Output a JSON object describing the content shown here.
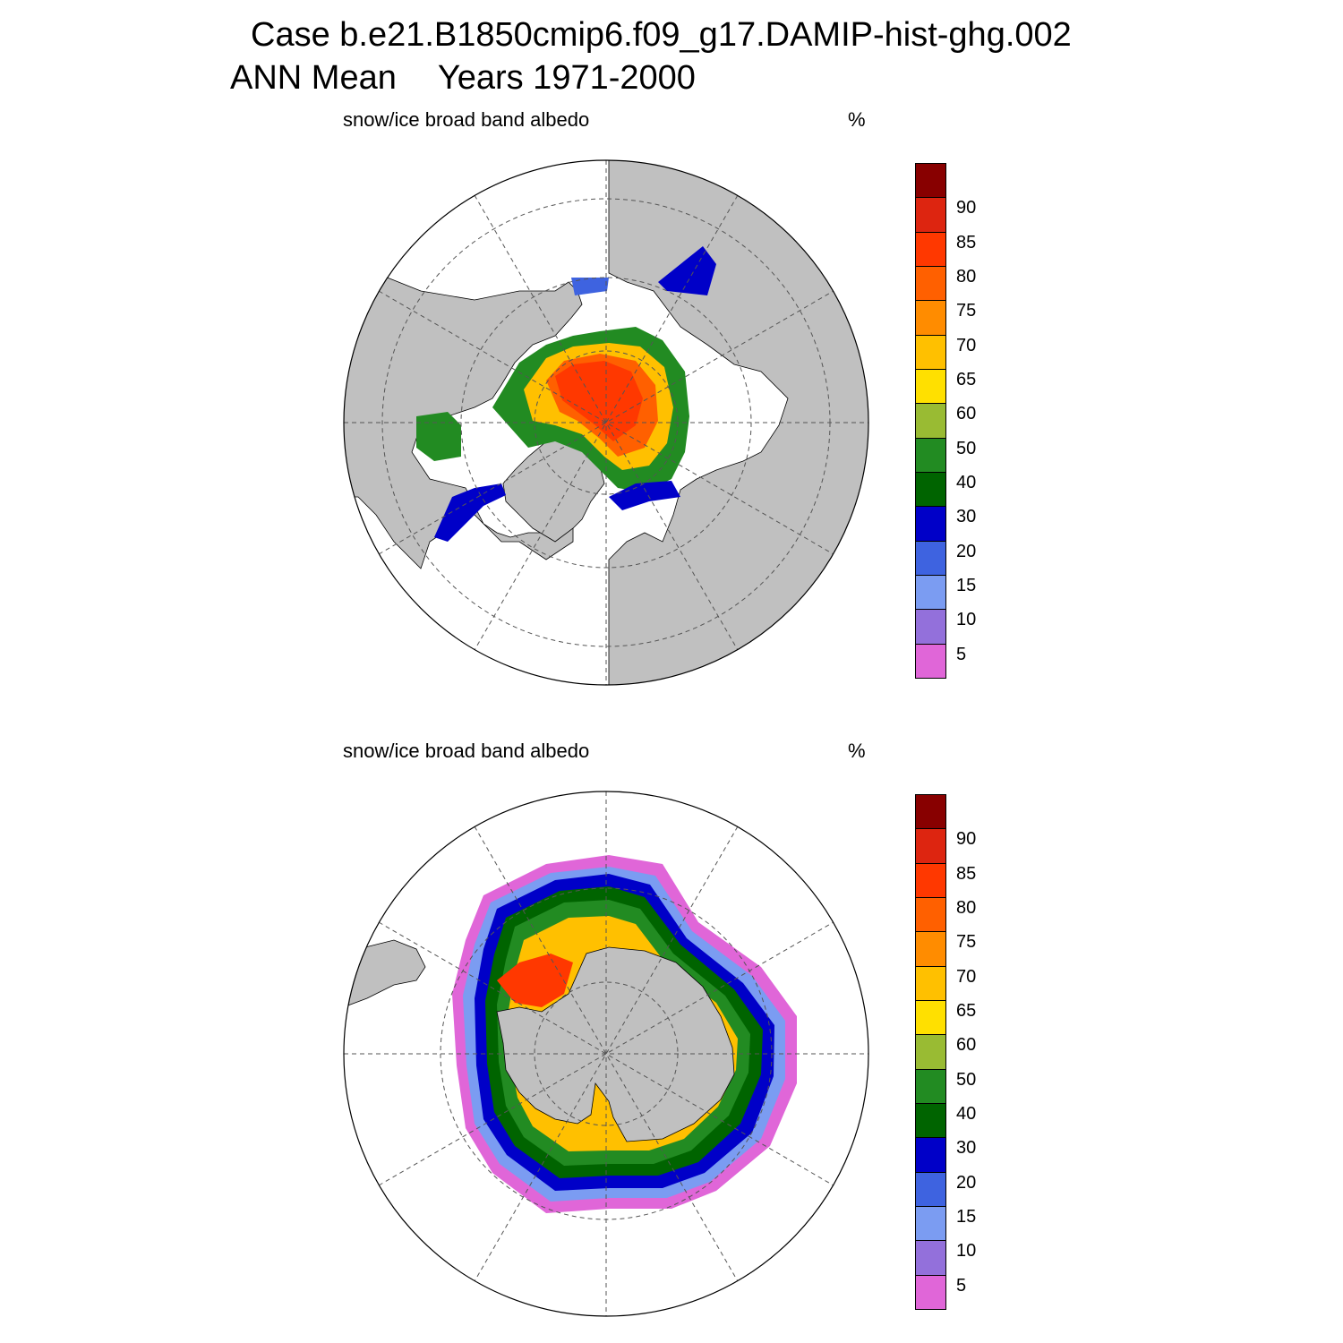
{
  "title": {
    "case": "Case b.e21.B1850cmip6.f09_g17.DAMIP-hist-ghg.002",
    "season": "ANN Mean",
    "years": "Years 1971-2000"
  },
  "panels": [
    {
      "id": "north",
      "variable": "snow/ice broad band albedo",
      "units": "%"
    },
    {
      "id": "south",
      "variable": "snow/ice broad band albedo",
      "units": "%"
    }
  ],
  "colorbar": {
    "levels": [
      "5",
      "10",
      "15",
      "20",
      "30",
      "40",
      "50",
      "60",
      "65",
      "70",
      "75",
      "80",
      "85",
      "90"
    ],
    "colors": [
      "#e066d8",
      "#9370db",
      "#7b9cf2",
      "#3e63e0",
      "#0000c8",
      "#006400",
      "#228b22",
      "#99bb33",
      "#ffe000",
      "#ffc000",
      "#ff8c00",
      "#ff6000",
      "#ff3800",
      "#dd2510",
      "#880000"
    ]
  },
  "map_style": {
    "land_color": "#c0c0c0",
    "ocean_color": "#ffffff",
    "grid_style": "dashed"
  }
}
